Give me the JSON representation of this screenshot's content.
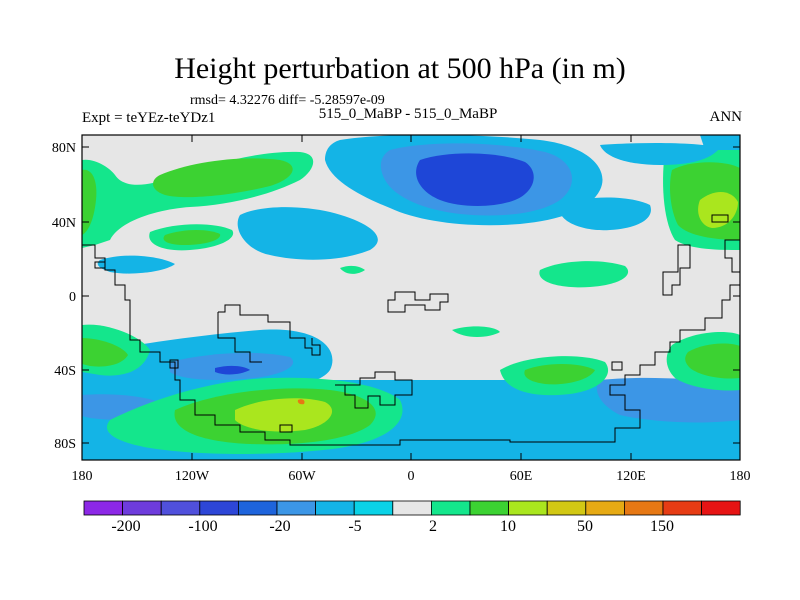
{
  "figure": {
    "title": "Height perturbation at 500 hPa (in m)",
    "stats": "rmsd= 4.32276 diff= -5.28597e-09",
    "experiment": "Expt = teYEz-teYDz1",
    "case_label": "515_0_MaBP - 515_0_MaBP",
    "season": "ANN"
  },
  "map": {
    "lat_ticks": [
      "80N",
      "40N",
      "0",
      "40S",
      "80S"
    ],
    "lon_ticks": [
      "180",
      "120W",
      "60W",
      "0",
      "60E",
      "120E",
      "180"
    ],
    "background_color": "#e6e6e6",
    "contour_colors": {
      "-5": "#14b4e6",
      "-20": "#3c96e6",
      "-100": "#1e46d7",
      "2": "#14e68c",
      "10": "#3cd232",
      "50": "#aae61e",
      "150": "#e67814"
    }
  },
  "colorbar": {
    "colors": [
      "#8c28e6",
      "#6e3cdc",
      "#5050dc",
      "#2d46d7",
      "#1e64dc",
      "#3c96e6",
      "#14b4e6",
      "#0ad2e6",
      "#e6e6e6",
      "#14e68c",
      "#3cd232",
      "#aae61e",
      "#d2c814",
      "#e6aa14",
      "#e67814",
      "#e63c14",
      "#e61414"
    ],
    "labels": [
      "-200",
      "-100",
      "-20",
      "-5",
      "2",
      "10",
      "50",
      "150"
    ]
  }
}
